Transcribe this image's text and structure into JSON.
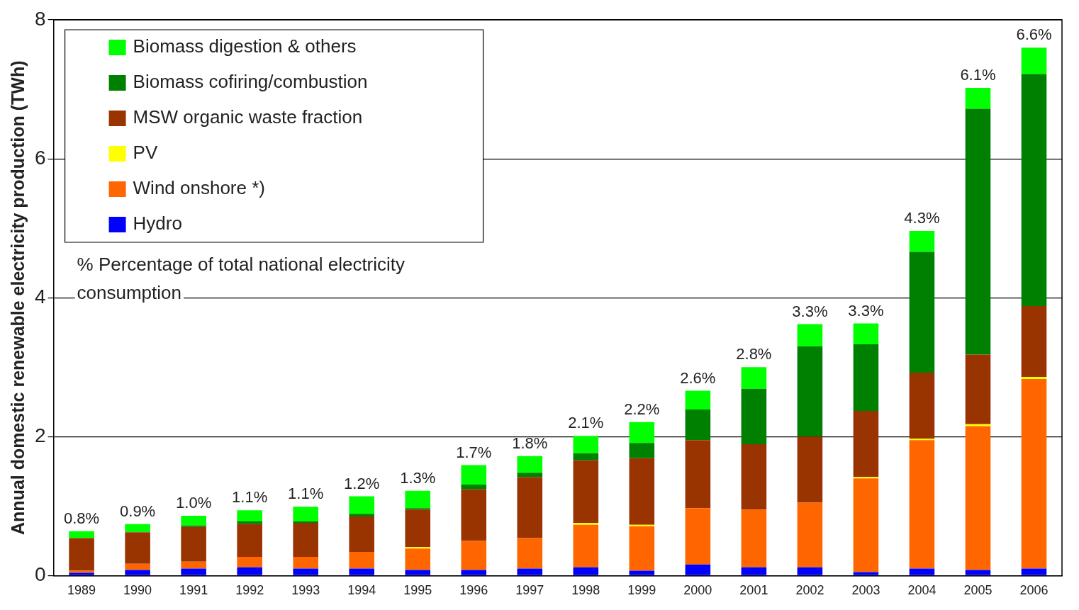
{
  "chart_data": {
    "type": "bar",
    "stacked": true,
    "ylabel": "Annual domestic renewable electricity production (TWh)",
    "categories": [
      "1989",
      "1990",
      "1991",
      "1992",
      "1993",
      "1994",
      "1995",
      "1996",
      "1997",
      "1998",
      "1999",
      "2000",
      "2001",
      "2002",
      "2003",
      "2004",
      "2005",
      "2006"
    ],
    "series": [
      {
        "name": "Hydro",
        "color": "#0000ff",
        "values": [
          0.04,
          0.08,
          0.1,
          0.12,
          0.1,
          0.1,
          0.08,
          0.08,
          0.1,
          0.12,
          0.07,
          0.16,
          0.12,
          0.12,
          0.05,
          0.1,
          0.08,
          0.1
        ]
      },
      {
        "name": "Wind onshore *)",
        "color": "#ff6600",
        "values": [
          0.03,
          0.09,
          0.1,
          0.15,
          0.17,
          0.24,
          0.31,
          0.42,
          0.44,
          0.61,
          0.64,
          0.81,
          0.83,
          0.93,
          1.35,
          1.85,
          2.07,
          2.73
        ]
      },
      {
        "name": "PV",
        "color": "#ffff00",
        "values": [
          0,
          0,
          0,
          0,
          0,
          0,
          0.02,
          0,
          0,
          0.03,
          0.02,
          0,
          0,
          0,
          0.02,
          0.02,
          0.03,
          0.03
        ]
      },
      {
        "name": "MSW organic waste fraction",
        "color": "#993300",
        "values": [
          0.47,
          0.45,
          0.5,
          0.47,
          0.49,
          0.51,
          0.54,
          0.74,
          0.88,
          0.9,
          0.96,
          0.98,
          0.94,
          0.95,
          0.95,
          0.95,
          1.0,
          1.02
        ]
      },
      {
        "name": "Biomass cofiring/combustion",
        "color": "#008000",
        "values": [
          0,
          0.01,
          0.02,
          0.04,
          0.02,
          0.04,
          0.02,
          0.07,
          0.06,
          0.1,
          0.22,
          0.44,
          0.8,
          1.3,
          0.96,
          1.74,
          3.54,
          3.34
        ]
      },
      {
        "name": "Biomass digestion & others",
        "color": "#00ff00",
        "values": [
          0.1,
          0.11,
          0.14,
          0.16,
          0.21,
          0.25,
          0.25,
          0.28,
          0.24,
          0.25,
          0.3,
          0.27,
          0.31,
          0.32,
          0.3,
          0.3,
          0.3,
          0.38
        ]
      }
    ],
    "ylim": [
      0,
      8
    ],
    "yticks": [
      0,
      2,
      4,
      6,
      8
    ],
    "grid": "y",
    "legend": "top left",
    "annotations": [
      "% Percentage of total national electricity consumption",
      {
        "text": "0.8%",
        "x": "1989",
        "y": 0.64
      },
      {
        "text": "0.9%",
        "x": "1990",
        "y": 0.74
      },
      {
        "text": "1.0%",
        "x": "1991",
        "y": 0.86
      },
      {
        "text": "1.1%",
        "x": "1992",
        "y": 0.94
      },
      {
        "text": "1.1%",
        "x": "1993",
        "y": 0.99
      },
      {
        "text": "1.2%",
        "x": "1994",
        "y": 1.14
      },
      {
        "text": "1.3%",
        "x": "1995",
        "y": 1.22
      },
      {
        "text": "1.7%",
        "x": "1996",
        "y": 1.59
      },
      {
        "text": "1.8%",
        "x": "1997",
        "y": 1.72
      },
      {
        "text": "2.1%",
        "x": "1998",
        "y": 2.01
      },
      {
        "text": "2.2%",
        "x": "1999",
        "y": 2.21
      },
      {
        "text": "2.6%",
        "x": "2000",
        "y": 2.66
      },
      {
        "text": "2.8%",
        "x": "2001",
        "y": 3.0
      },
      {
        "text": "3.3%",
        "x": "2002",
        "y": 3.62
      },
      {
        "text": "3.3%",
        "x": "2003",
        "y": 3.63
      },
      {
        "text": "4.3%",
        "x": "2004",
        "y": 4.96
      },
      {
        "text": "6.1%",
        "x": "2005",
        "y": 7.02
      },
      {
        "text": "6.6%",
        "x": "2006",
        "y": 7.6
      }
    ]
  }
}
